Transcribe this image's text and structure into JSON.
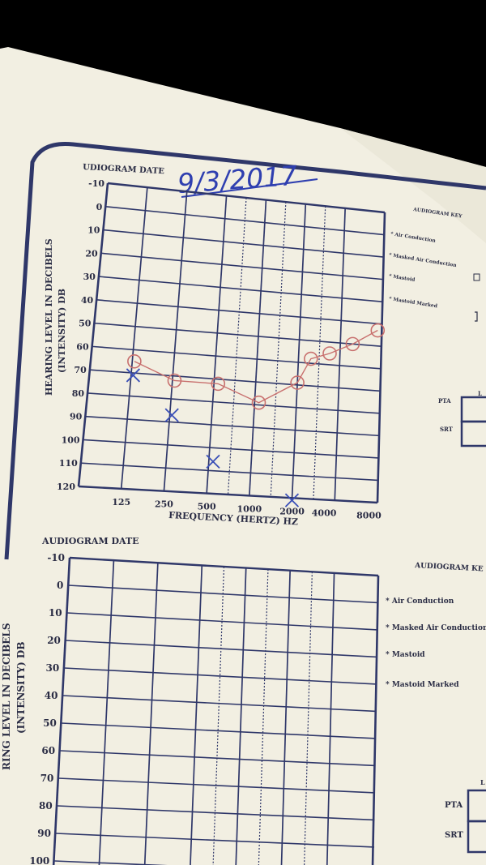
{
  "audiogram_top": {
    "date_label": "UDIOGRAM DATE",
    "date_handwritten": "9/3/2017",
    "y_axis_title_line1": "HEARING LEVEL IN DECIBELS",
    "y_axis_title_line2": "(INTENSITY) DB",
    "y_ticks": [
      "-10",
      "0",
      "10",
      "20",
      "30",
      "40",
      "50",
      "60",
      "70",
      "80",
      "90",
      "100",
      "110",
      "120"
    ],
    "x_ticks": [
      "125",
      "250",
      "500",
      "1000",
      "2000",
      "4000",
      "8000"
    ],
    "x_axis_title": "FREQUENCY (HERTZ) HZ",
    "key_title": "AUDIOGRAM KEY",
    "key_items": [
      "Air Conduction",
      "Masked Air Conduction",
      "Mastoid",
      "Mastoid Marked"
    ],
    "pta_label": "PTA",
    "srt_label": "SRT",
    "side_letter": "L",
    "series_o": [
      {
        "freq": "125",
        "db": 65
      },
      {
        "freq": "250",
        "db": 72
      },
      {
        "freq": "500",
        "db": 72
      },
      {
        "freq": "1000",
        "db": 79
      },
      {
        "freq": "2000",
        "db": 69
      },
      {
        "freq": "3000",
        "db": 58
      },
      {
        "freq": "4000",
        "db": 55
      },
      {
        "freq": "6000",
        "db": 50
      },
      {
        "freq": "8000",
        "db": 43
      }
    ],
    "series_x": [
      {
        "freq": "125",
        "db": 71
      },
      {
        "freq": "250",
        "db": 87
      },
      {
        "freq": "500",
        "db": 106
      },
      {
        "freq": "2000",
        "db": 121
      }
    ]
  },
  "audiogram_bottom": {
    "date_label": "AUDIOGRAM DATE",
    "y_axis_title_line1": "RING LEVEL IN DECIBELS",
    "y_axis_title_line2": "(INTENSITY) DB",
    "y_ticks": [
      "-10",
      "0",
      "10",
      "20",
      "30",
      "40",
      "50",
      "60",
      "70",
      "80",
      "90",
      "100"
    ],
    "key_title": "AUDIOGRAM KE",
    "key_items": [
      "Air Conduction",
      "Masked Air Conduction",
      "Mastoid",
      "Mastoid Marked"
    ],
    "pta_label": "PTA",
    "srt_label": "SRT",
    "side_letter": "L"
  },
  "colors": {
    "paper": "#f2efe2",
    "grid": "#2f3769",
    "ink_red": "#c8706e",
    "ink_blue": "#3a4fb7"
  }
}
